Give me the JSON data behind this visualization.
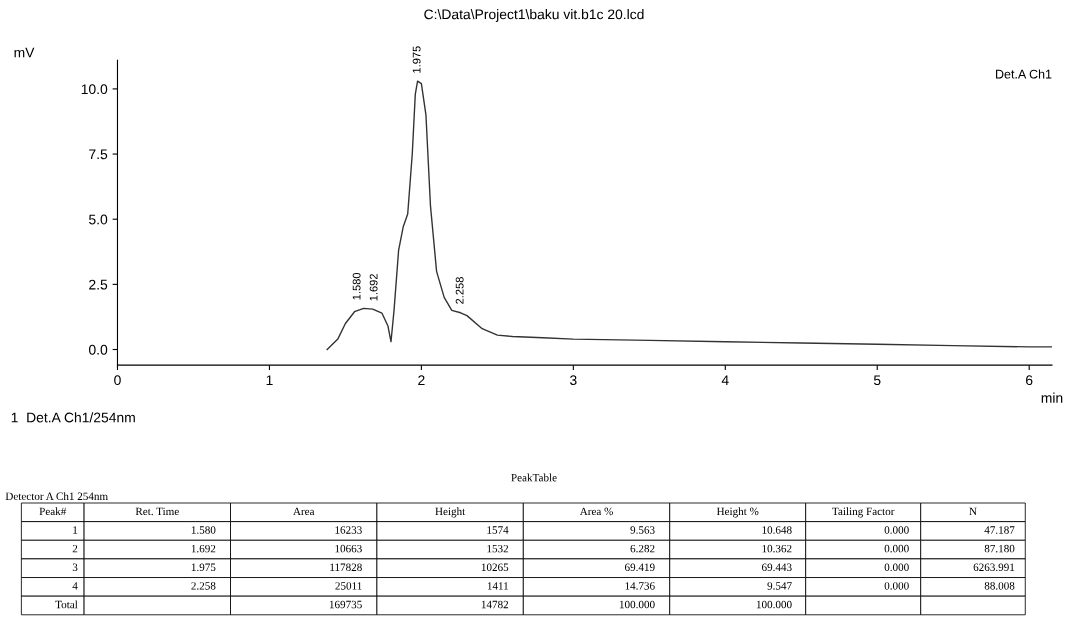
{
  "chart_data": {
    "type": "line",
    "title": "C:\\Data\\Project1\\baku vit.b1c 20.lcd",
    "xlabel": "min",
    "ylabel": "mV",
    "series": [
      {
        "color": "#333333",
        "x": [
          1.38,
          1.45,
          1.5,
          1.56,
          1.62,
          1.68,
          1.74,
          1.78,
          1.8,
          1.82,
          1.85,
          1.88,
          1.91,
          1.94,
          1.96,
          1.975,
          2.0,
          2.03,
          2.06,
          2.1,
          2.15,
          2.2,
          2.258,
          2.3,
          2.4,
          2.5,
          2.6,
          2.8,
          3.0,
          3.5,
          4.0,
          4.5,
          5.0,
          5.5,
          6.0,
          6.15
        ],
        "values": [
          0.0,
          0.4,
          1.0,
          1.45,
          1.58,
          1.55,
          1.4,
          0.9,
          0.3,
          1.5,
          3.8,
          4.7,
          5.2,
          7.5,
          9.8,
          10.3,
          10.2,
          9.0,
          5.5,
          3.0,
          2.0,
          1.5,
          1.41,
          1.3,
          0.8,
          0.55,
          0.5,
          0.45,
          0.4,
          0.35,
          0.3,
          0.25,
          0.2,
          0.15,
          0.1,
          0.1
        ]
      }
    ],
    "xlim": [
      0,
      6.15
    ],
    "xticks": [
      0,
      1,
      2,
      3,
      4,
      5,
      6
    ],
    "ylim": [
      -0.6,
      11.1
    ],
    "yticks": [
      {
        "value": 0,
        "label": "0.0"
      },
      {
        "value": 2.5,
        "label": "2.5"
      },
      {
        "value": 5,
        "label": "5.0"
      },
      {
        "value": 7.5,
        "label": "7.5"
      },
      {
        "value": 10,
        "label": "10.0"
      }
    ],
    "grid": false,
    "legend": false,
    "marker": "none",
    "line_style": "solid",
    "annotations": [
      "1  Det.A Ch1/254nm",
      "PeakTable",
      "Detector A Ch1 254nm",
      "Det.A Ch1",
      {
        "text": "1.580",
        "x": 1.58,
        "y": 1.57
      },
      {
        "text": "1.692",
        "x": 1.692,
        "y": 1.53
      },
      {
        "text": "1.975",
        "x": 1.975,
        "y": 10.27
      },
      {
        "text": "2.258",
        "x": 2.258,
        "y": 1.41
      },
      "Peak#",
      "Ret. Time",
      "Area",
      "Height",
      "Area %",
      "Height %",
      "Tailing Factor",
      "N",
      "1",
      "1.580",
      "16233",
      "1574",
      "9.563",
      "10.648",
      "0.000",
      "47.187",
      "2",
      "1.692",
      "10663",
      "1532",
      "6.282",
      "10.362",
      "0.000",
      "87.180",
      "3",
      "1.975",
      "117828",
      "10265",
      "69.419",
      "69.443",
      "0.000",
      "6263.991",
      "4",
      "2.258",
      "25011",
      "1411",
      "14.736",
      "9.547",
      "0.000",
      "88.008",
      "Total",
      null,
      "169735",
      "14782",
      "100.000",
      "100.000",
      null,
      null
    ]
  }
}
